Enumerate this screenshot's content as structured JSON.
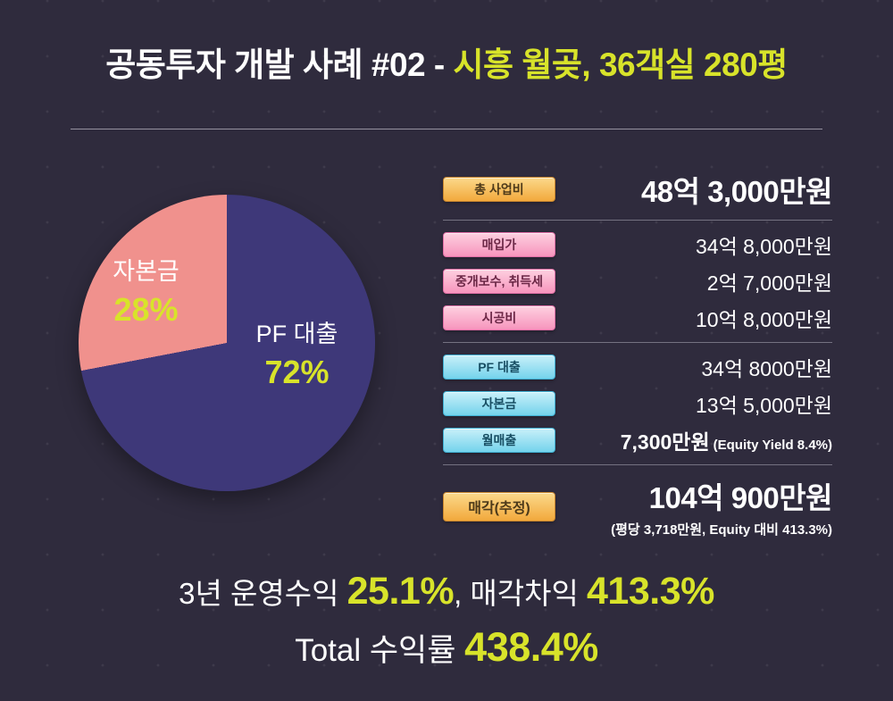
{
  "colors": {
    "background": "#2f2b3d",
    "accent_yellow": "#d8e32a",
    "pie_pf": "#3e3879",
    "pie_equity": "#f0918d",
    "badge_orange": "#f2a93c",
    "badge_pink": "#f795bd",
    "badge_cyan": "#74d3ec"
  },
  "title": {
    "main": "공동투자 개발 사례 #02 - ",
    "highlight": "시흥 월곶, 36객실 280평"
  },
  "pie": {
    "labels": [
      {
        "name": "자본금",
        "percent": "28%"
      },
      {
        "name": "PF 대출",
        "percent": "72%"
      }
    ]
  },
  "finance": {
    "rows": [
      {
        "badge": "총 사업비",
        "value": "48억 3,000만원"
      },
      {
        "badge": "매입가",
        "value": "34억 8,000만원"
      },
      {
        "badge": "중개보수, 취득세",
        "value": "2억 7,000만원"
      },
      {
        "badge": "시공비",
        "value": "10억 8,000만원"
      },
      {
        "badge": "PF 대출",
        "value": "34억 8000만원"
      },
      {
        "badge": "자본금",
        "value": "13억 5,000만원"
      },
      {
        "badge": "월매출",
        "value": "7,300만원",
        "note": "(Equity Yield 8.4%)"
      },
      {
        "badge": "매각(추정)",
        "value": "104억 900만원",
        "note": "(평당 3,718만원, Equity 대비 413.3%)"
      }
    ]
  },
  "summary": {
    "line1_text1": "3년 운영수익 ",
    "line1_value1": "25.1%",
    "line1_text2": ", 매각차익 ",
    "line1_value2": "413.3%",
    "line2_text": "Total 수익률 ",
    "line2_value": "438.4%"
  },
  "chart_data": [
    {
      "type": "pie",
      "title": "공동투자 개발 사례 #02 - 시흥 월곶, 36객실 280평",
      "labels": [
        "PF 대출",
        "자본금"
      ],
      "values": [
        72,
        28
      ],
      "unit": "percent",
      "colors": [
        "#3e3879",
        "#f0918d"
      ],
      "start_angle_deg": 0,
      "direction": "clockwise",
      "legend_position": "inside"
    },
    {
      "type": "table",
      "rows": [
        [
          "총 사업비",
          "48억 3,000만원"
        ],
        [
          "매입가",
          "34억 8,000만원"
        ],
        [
          "중개보수, 취득세",
          "2억 7,000만원"
        ],
        [
          "시공비",
          "10억 8,000만원"
        ],
        [
          "PF 대출",
          "34억 8000만원"
        ],
        [
          "자본금",
          "13억 5,000만원"
        ],
        [
          "월매출",
          "7,300만원 (Equity Yield 8.4%)"
        ],
        [
          "매각(추정)",
          "104억 900만원 (평당 3,718만원, Equity 대비 413.3%)"
        ]
      ]
    }
  ]
}
